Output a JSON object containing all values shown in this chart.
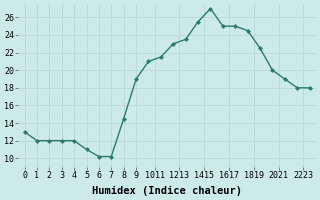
{
  "x": [
    0,
    1,
    2,
    3,
    4,
    5,
    6,
    7,
    8,
    9,
    10,
    11,
    12,
    13,
    14,
    15,
    16,
    17,
    18,
    19,
    20,
    21,
    22,
    23
  ],
  "y": [
    13,
    12,
    12,
    12,
    12,
    11,
    10.2,
    10.2,
    14.5,
    19,
    21,
    21.5,
    23,
    23.5,
    25.5,
    27,
    25,
    25,
    24.5,
    22.5,
    20,
    19,
    18,
    18
  ],
  "xlabel": "Humidex (Indice chaleur)",
  "ylabel": "",
  "ylim": [
    9,
    27.5
  ],
  "xlim": [
    -0.5,
    23.5
  ],
  "yticks": [
    10,
    12,
    14,
    16,
    18,
    20,
    22,
    24,
    26
  ],
  "xtick_labels": [
    "0",
    "1",
    "2",
    "3",
    "4",
    "5",
    "6",
    "7",
    "8",
    "9",
    "1011",
    "1213",
    "1415",
    "1617",
    "1819",
    "2021",
    "2223"
  ],
  "xtick_positions": [
    0,
    1,
    2,
    3,
    4,
    5,
    6,
    7,
    8,
    9,
    10.5,
    12.5,
    14.5,
    16.5,
    18.5,
    20.5,
    22.5
  ],
  "line_color": "#2d7b6e",
  "marker_color": "#2d7b6e",
  "bg_color": "#cceae8",
  "grid_color": "#b8d8d6",
  "xlabel_fontsize": 7.5,
  "tick_fontsize": 6.0
}
